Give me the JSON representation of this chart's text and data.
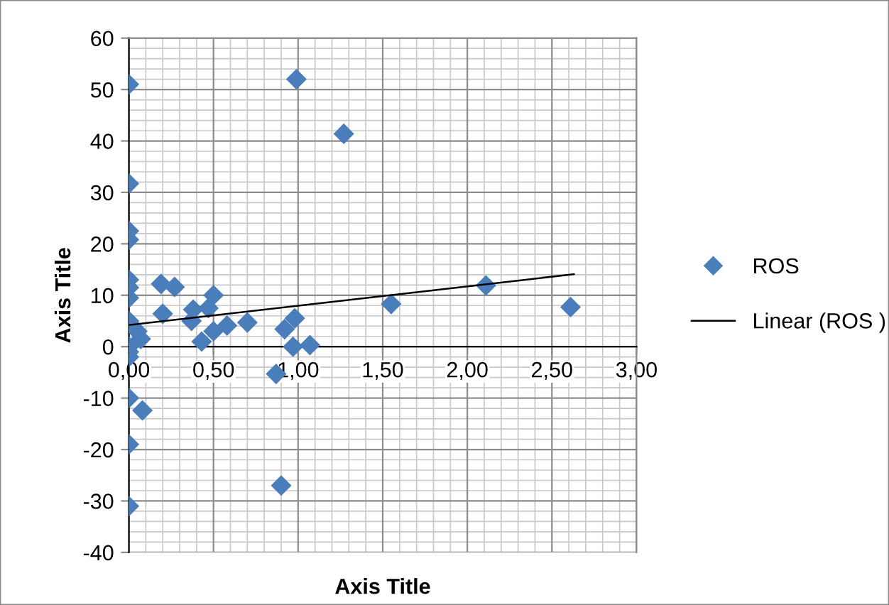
{
  "chart_data": {
    "type": "scatter",
    "xlabel": "Axis Title",
    "ylabel": "Axis Title",
    "xlim": [
      0,
      3
    ],
    "ylim": [
      -40,
      60
    ],
    "xticks": [
      {
        "value": 0,
        "label": "0,00"
      },
      {
        "value": 0.5,
        "label": "0,50"
      },
      {
        "value": 1,
        "label": "1,00"
      },
      {
        "value": 1.5,
        "label": "1,50"
      },
      {
        "value": 2,
        "label": "2,00"
      },
      {
        "value": 2.5,
        "label": "2,50"
      },
      {
        "value": 3,
        "label": "3,00"
      }
    ],
    "yticks": [
      -40,
      -30,
      -20,
      -10,
      0,
      10,
      20,
      30,
      40,
      50,
      60
    ],
    "grid": true,
    "legend": "right",
    "marker": "diamond",
    "series": [
      {
        "name": "ROS",
        "color": "#4a7ebb",
        "x": [
          0,
          0,
          0,
          0,
          0,
          0,
          0,
          0,
          0,
          0,
          0,
          0,
          0,
          0,
          0.05,
          0.07,
          0.08,
          0.19,
          0.27,
          0.2,
          0.38,
          0.37,
          0.43,
          0.5,
          0.47,
          0.5,
          0.58,
          0.7,
          0.87,
          0.92,
          0.98,
          0.97,
          1.07,
          0.9,
          0.99,
          1.27,
          1.55,
          2.11,
          2.61
        ],
        "values": [
          51,
          31.7,
          22.5,
          20.8,
          13,
          11.5,
          9.5,
          5,
          0,
          -1,
          -2,
          -10,
          -19,
          -31,
          3,
          1.5,
          -12.4,
          12.2,
          11.6,
          6.4,
          7.2,
          5,
          1,
          10,
          7.5,
          3,
          4.1,
          4.7,
          -5.3,
          3.4,
          5.5,
          0,
          0.3,
          -27,
          52,
          41.4,
          8.3,
          11.9,
          7.7
        ]
      },
      {
        "name": "Linear (ROS )",
        "color": "#000000",
        "type": "line",
        "marker": "none",
        "x": [
          0,
          2.63
        ],
        "values": [
          4.2,
          14.1
        ]
      }
    ]
  }
}
